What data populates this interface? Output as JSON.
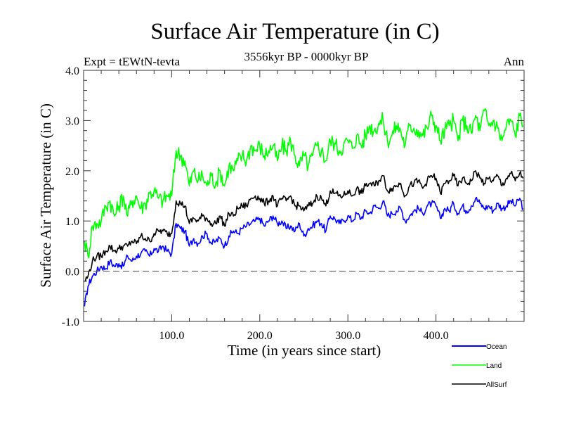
{
  "chart_data": {
    "type": "line",
    "title": "Surface Air Temperature (in C)",
    "subtitle_left": "Expt = tEWtN-tevta",
    "subtitle_center": "3556kyr BP - 0000kyr BP",
    "subtitle_right": "Ann",
    "xlabel": "Time (in years since start)",
    "ylabel": "Surface Air Temperature (in C)",
    "xlim": [
      0,
      500
    ],
    "ylim": [
      -1.0,
      4.0
    ],
    "xticks": [
      100,
      200,
      300,
      400
    ],
    "xtick_labels": [
      "100.0",
      "200.0",
      "300.0",
      "400.0"
    ],
    "yticks": [
      -1.0,
      0.0,
      1.0,
      2.0,
      3.0,
      4.0
    ],
    "ytick_labels": [
      "-1.0",
      "0.0",
      "1.0",
      "2.0",
      "3.0",
      "4.0"
    ],
    "reference_line": {
      "y": 0.0,
      "style": "dashed"
    },
    "legend": {
      "placement": "bottom-right, outside plot"
    },
    "x": [
      1,
      5,
      10,
      15,
      20,
      25,
      30,
      35,
      40,
      45,
      50,
      55,
      60,
      65,
      70,
      75,
      80,
      85,
      90,
      95,
      100,
      105,
      110,
      115,
      120,
      125,
      130,
      135,
      140,
      145,
      150,
      155,
      160,
      165,
      170,
      175,
      180,
      185,
      190,
      195,
      200,
      205,
      210,
      215,
      220,
      225,
      230,
      235,
      240,
      245,
      250,
      255,
      260,
      265,
      270,
      275,
      280,
      285,
      290,
      295,
      300,
      305,
      310,
      315,
      320,
      325,
      330,
      335,
      340,
      345,
      350,
      355,
      360,
      365,
      370,
      375,
      380,
      385,
      390,
      395,
      400,
      405,
      410,
      415,
      420,
      425,
      430,
      435,
      440,
      445,
      450,
      455,
      460,
      465,
      470,
      475,
      480,
      485,
      490,
      495,
      499
    ],
    "series": [
      {
        "name": "Ocean",
        "color": "#0000ff",
        "values": [
          -0.7,
          -0.3,
          -0.1,
          0.0,
          0.1,
          0.05,
          0.2,
          0.1,
          0.15,
          0.1,
          0.3,
          0.2,
          0.3,
          0.35,
          0.4,
          0.3,
          0.45,
          0.4,
          0.5,
          0.4,
          0.35,
          0.95,
          0.85,
          0.8,
          0.5,
          0.65,
          0.55,
          0.7,
          0.75,
          0.55,
          0.6,
          0.65,
          0.5,
          0.7,
          0.8,
          0.75,
          0.85,
          0.9,
          0.95,
          1.0,
          1.05,
          0.9,
          1.0,
          1.1,
          0.95,
          1.0,
          0.85,
          0.9,
          0.8,
          0.95,
          0.7,
          0.85,
          0.9,
          1.0,
          0.95,
          0.8,
          1.1,
          1.05,
          0.95,
          1.0,
          1.1,
          1.0,
          1.15,
          1.05,
          1.2,
          1.15,
          1.3,
          1.25,
          1.4,
          1.1,
          1.15,
          1.2,
          1.25,
          1.0,
          1.1,
          1.2,
          1.25,
          1.15,
          1.3,
          1.35,
          1.3,
          1.05,
          1.25,
          1.2,
          1.35,
          1.15,
          1.3,
          1.2,
          1.3,
          1.45,
          1.35,
          1.25,
          1.3,
          1.2,
          1.35,
          1.25,
          1.3,
          1.4,
          1.3,
          1.45,
          1.25
        ]
      },
      {
        "name": "Land",
        "color": "#00ff00",
        "values": [
          0.6,
          0.3,
          0.9,
          0.95,
          1.0,
          1.3,
          1.4,
          1.1,
          1.3,
          1.5,
          1.1,
          1.4,
          1.5,
          1.25,
          1.35,
          1.55,
          1.6,
          1.45,
          1.4,
          1.5,
          1.5,
          2.4,
          2.3,
          2.2,
          1.7,
          2.0,
          1.8,
          1.9,
          1.7,
          1.9,
          1.75,
          2.0,
          1.7,
          2.1,
          2.0,
          2.2,
          2.3,
          2.2,
          2.5,
          2.4,
          2.5,
          2.3,
          2.4,
          2.5,
          2.2,
          2.5,
          2.4,
          2.6,
          2.3,
          2.1,
          2.3,
          2.1,
          2.3,
          2.5,
          2.4,
          2.2,
          2.6,
          2.55,
          2.4,
          2.5,
          2.6,
          2.45,
          2.7,
          2.5,
          2.7,
          2.9,
          2.8,
          2.95,
          3.0,
          2.6,
          2.7,
          2.9,
          2.8,
          2.5,
          2.9,
          2.85,
          2.8,
          2.7,
          2.85,
          3.1,
          2.9,
          2.6,
          2.8,
          2.9,
          3.0,
          2.6,
          3.0,
          2.9,
          2.75,
          3.1,
          2.8,
          3.2,
          2.9,
          3.0,
          2.85,
          2.6,
          2.9,
          3.0,
          2.7,
          3.1,
          2.9
        ]
      },
      {
        "name": "AllSurf",
        "color": "#000000",
        "values": [
          -0.2,
          -0.1,
          0.2,
          0.3,
          0.3,
          0.4,
          0.5,
          0.4,
          0.45,
          0.5,
          0.5,
          0.6,
          0.55,
          0.7,
          0.65,
          0.6,
          0.75,
          0.8,
          0.8,
          0.75,
          0.75,
          1.4,
          1.35,
          1.3,
          0.95,
          1.05,
          1.0,
          1.1,
          1.05,
          0.95,
          0.95,
          1.1,
          0.9,
          1.15,
          1.1,
          1.25,
          1.3,
          1.3,
          1.45,
          1.5,
          1.45,
          1.35,
          1.4,
          1.5,
          1.3,
          1.45,
          1.4,
          1.5,
          1.3,
          1.3,
          1.2,
          1.3,
          1.35,
          1.5,
          1.45,
          1.3,
          1.6,
          1.55,
          1.5,
          1.5,
          1.6,
          1.5,
          1.65,
          1.55,
          1.7,
          1.75,
          1.7,
          1.8,
          1.9,
          1.6,
          1.65,
          1.7,
          1.75,
          1.5,
          1.7,
          1.75,
          1.8,
          1.65,
          1.8,
          1.9,
          1.85,
          1.55,
          1.75,
          1.8,
          1.9,
          1.7,
          1.85,
          1.75,
          1.8,
          2.0,
          1.85,
          1.75,
          1.85,
          1.8,
          1.9,
          1.7,
          1.85,
          1.95,
          1.8,
          1.95,
          1.85
        ]
      }
    ]
  }
}
